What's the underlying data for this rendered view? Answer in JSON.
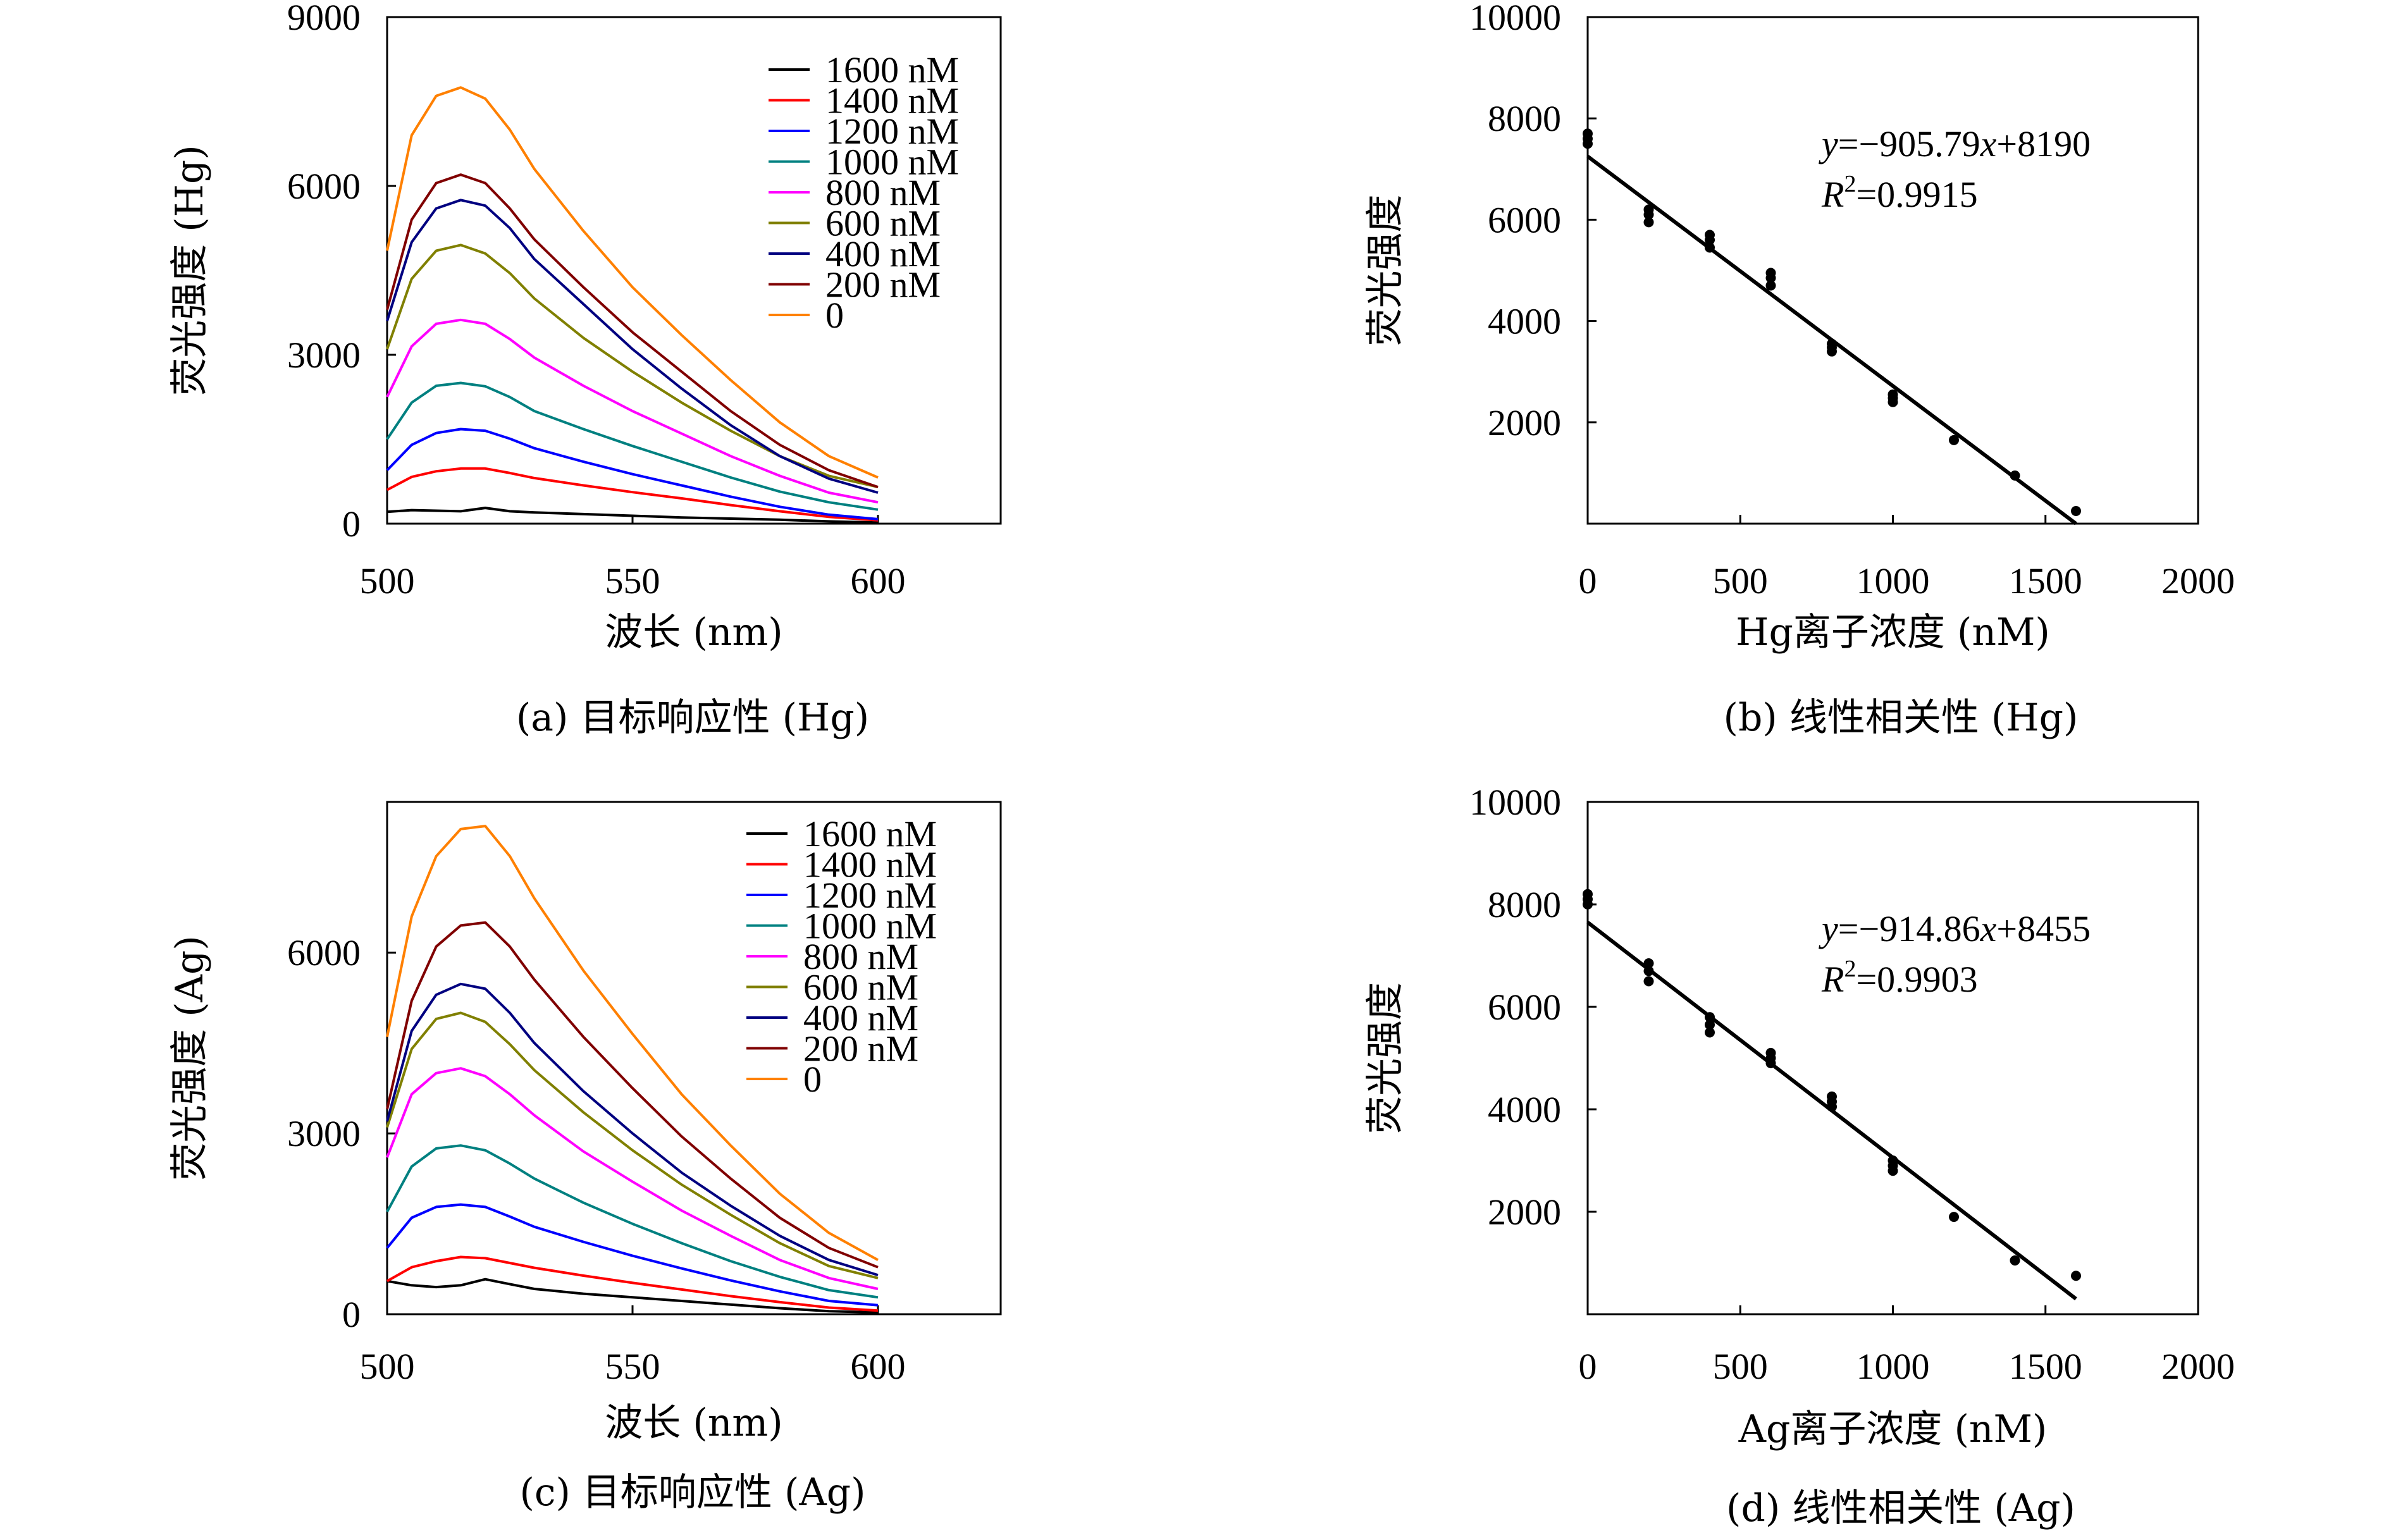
{
  "chart_data": [
    {
      "type": "line",
      "caption": "(a) 目标响应性 (Hg)",
      "xlabel": "波长 (nm)",
      "ylabel": "荧光强度 (Hg)",
      "xlim": [
        500,
        625
      ],
      "ylim": [
        0,
        9000
      ],
      "xticks": [
        "500",
        "550",
        "600"
      ],
      "yticks": [
        "0",
        "3000",
        "6000",
        "9000"
      ],
      "legend_position": "top-right",
      "x": [
        500,
        505,
        510,
        515,
        520,
        525,
        530,
        540,
        550,
        560,
        570,
        580,
        590,
        600
      ],
      "series": [
        {
          "name": "1600 nM",
          "color": "#000000",
          "values": [
            210,
            240,
            230,
            220,
            280,
            220,
            200,
            170,
            140,
            110,
            90,
            70,
            40,
            20
          ]
        },
        {
          "name": "1400 nM",
          "color": "#ff0000",
          "values": [
            600,
            830,
            930,
            980,
            980,
            900,
            810,
            680,
            560,
            450,
            330,
            220,
            120,
            60
          ]
        },
        {
          "name": "1200 nM",
          "color": "#0000ff",
          "values": [
            950,
            1400,
            1610,
            1680,
            1650,
            1510,
            1340,
            1100,
            880,
            680,
            480,
            300,
            160,
            80
          ]
        },
        {
          "name": "1000 nM",
          "color": "#008080",
          "values": [
            1500,
            2150,
            2450,
            2500,
            2440,
            2250,
            2000,
            1680,
            1380,
            1100,
            820,
            570,
            380,
            250
          ]
        },
        {
          "name": "800 nM",
          "color": "#ff00ff",
          "values": [
            2250,
            3150,
            3550,
            3620,
            3550,
            3280,
            2950,
            2450,
            2000,
            1600,
            1200,
            850,
            550,
            380
          ]
        },
        {
          "name": "600 nM",
          "color": "#808000",
          "values": [
            3100,
            4350,
            4850,
            4950,
            4800,
            4450,
            4000,
            3300,
            2700,
            2150,
            1650,
            1200,
            850,
            650
          ]
        },
        {
          "name": "400 nM",
          "color": "#000080",
          "values": [
            3600,
            5000,
            5600,
            5750,
            5650,
            5250,
            4700,
            3900,
            3100,
            2400,
            1750,
            1200,
            800,
            550
          ]
        },
        {
          "name": "200 nM",
          "color": "#800000",
          "values": [
            3800,
            5400,
            6050,
            6200,
            6050,
            5600,
            5050,
            4200,
            3400,
            2700,
            2000,
            1400,
            950,
            650
          ]
        },
        {
          "name": "0",
          "color": "#ff8000",
          "values": [
            4850,
            6900,
            7600,
            7750,
            7550,
            7000,
            6300,
            5200,
            4200,
            3350,
            2550,
            1800,
            1200,
            820
          ]
        }
      ]
    },
    {
      "type": "scatter",
      "caption": "(b) 线性相关性 (Hg)",
      "xlabel": "Hg离子浓度 (nM)",
      "ylabel": "荧光强度",
      "xlim": [
        0,
        2000
      ],
      "ylim": [
        0,
        10000
      ],
      "xticks": [
        "0",
        "500",
        "1000",
        "1500",
        "2000"
      ],
      "yticks": [
        "2000",
        "4000",
        "6000",
        "8000",
        "10000"
      ],
      "equation_y_prefix": "y",
      "equation_mid": "=−905.79",
      "equation_x_var": "x",
      "equation_end": "+8190",
      "r2_prefix": "R",
      "r2_sup": "2",
      "r2_value": "=0.9915",
      "points_x": [
        0,
        0,
        0,
        200,
        200,
        200,
        400,
        400,
        400,
        600,
        600,
        600,
        800,
        800,
        800,
        1000,
        1000,
        1000,
        1200,
        1400,
        1600
      ],
      "points_y": [
        7500,
        7600,
        7700,
        5950,
        6100,
        6200,
        5450,
        5600,
        5700,
        4700,
        4850,
        4950,
        3400,
        3480,
        3550,
        2400,
        2480,
        2550,
        1650,
        950,
        250
      ],
      "fit_line": {
        "x": [
          0,
          1600
        ],
        "y": [
          7250,
          0
        ]
      }
    },
    {
      "type": "line",
      "caption": "(c) 目标响应性 (Ag)",
      "xlabel": "波长 (nm)",
      "ylabel": "荧光强度 (Ag)",
      "xlim": [
        500,
        625
      ],
      "ylim": [
        0,
        8500
      ],
      "xticks": [
        "500",
        "550",
        "600"
      ],
      "yticks": [
        "0",
        "3000",
        "6000"
      ],
      "legend_position": "top-right",
      "x": [
        500,
        505,
        510,
        515,
        520,
        525,
        530,
        540,
        550,
        560,
        570,
        580,
        590,
        600
      ],
      "series": [
        {
          "name": "1600 nM",
          "color": "#000000",
          "values": [
            550,
            480,
            450,
            480,
            580,
            500,
            420,
            340,
            280,
            220,
            160,
            100,
            50,
            30
          ]
        },
        {
          "name": "1400 nM",
          "color": "#ff0000",
          "values": [
            550,
            780,
            880,
            950,
            930,
            850,
            770,
            640,
            520,
            410,
            300,
            200,
            110,
            60
          ]
        },
        {
          "name": "1200 nM",
          "color": "#0000ff",
          "values": [
            1100,
            1600,
            1780,
            1820,
            1780,
            1620,
            1450,
            1200,
            970,
            760,
            560,
            380,
            220,
            150
          ]
        },
        {
          "name": "1000 nM",
          "color": "#008080",
          "values": [
            1700,
            2450,
            2750,
            2800,
            2720,
            2500,
            2250,
            1850,
            1500,
            1180,
            880,
            620,
            400,
            280
          ]
        },
        {
          "name": "800 nM",
          "color": "#ff00ff",
          "values": [
            2600,
            3650,
            4000,
            4080,
            3950,
            3650,
            3300,
            2700,
            2200,
            1720,
            1300,
            900,
            600,
            420
          ]
        },
        {
          "name": "600 nM",
          "color": "#808000",
          "values": [
            3100,
            4400,
            4900,
            5000,
            4850,
            4480,
            4050,
            3350,
            2720,
            2150,
            1650,
            1180,
            800,
            600
          ]
        },
        {
          "name": "400 nM",
          "color": "#000080",
          "values": [
            3200,
            4700,
            5300,
            5480,
            5400,
            5000,
            4500,
            3700,
            3000,
            2350,
            1800,
            1300,
            900,
            650
          ]
        },
        {
          "name": "200 nM",
          "color": "#800000",
          "values": [
            3400,
            5200,
            6100,
            6450,
            6500,
            6100,
            5550,
            4600,
            3750,
            2950,
            2250,
            1600,
            1100,
            780
          ]
        },
        {
          "name": "0",
          "color": "#ff8000",
          "values": [
            4600,
            6600,
            7600,
            8050,
            8100,
            7600,
            6900,
            5700,
            4650,
            3650,
            2800,
            2000,
            1350,
            900
          ]
        }
      ]
    },
    {
      "type": "scatter",
      "caption": "(d) 线性相关性 (Ag)",
      "xlabel": "Ag离子浓度 (nM)",
      "ylabel": "荧光强度",
      "xlim": [
        0,
        2000
      ],
      "ylim": [
        0,
        10000
      ],
      "xticks": [
        "0",
        "500",
        "1000",
        "1500",
        "2000"
      ],
      "yticks": [
        "2000",
        "4000",
        "6000",
        "8000",
        "10000"
      ],
      "equation_y_prefix": "y",
      "equation_mid": "=−914.86",
      "equation_x_var": "x",
      "equation_end": "+8455",
      "r2_prefix": "R",
      "r2_sup": "2",
      "r2_value": "=0.9903",
      "points_x": [
        0,
        0,
        0,
        200,
        200,
        200,
        400,
        400,
        400,
        600,
        600,
        600,
        800,
        800,
        800,
        1000,
        1000,
        1000,
        1200,
        1400,
        1600
      ],
      "points_y": [
        8000,
        8100,
        8200,
        6500,
        6700,
        6850,
        5500,
        5650,
        5800,
        4900,
        5000,
        5100,
        4050,
        4150,
        4250,
        2800,
        2900,
        3000,
        1900,
        1050,
        750
      ],
      "fit_line": {
        "x": [
          0,
          1600
        ],
        "y": [
          7650,
          300
        ]
      }
    }
  ]
}
